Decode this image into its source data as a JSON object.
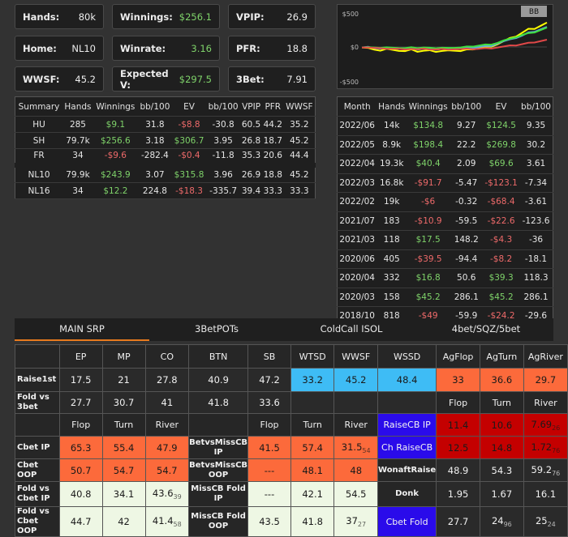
{
  "cards": [
    {
      "label": "Hands:",
      "value": "80k",
      "cls": ""
    },
    {
      "label": "Winnings:",
      "value": "$256.1",
      "cls": "green"
    },
    {
      "label": "VPIP:",
      "value": "26.9",
      "cls": ""
    },
    {
      "label": "Home:",
      "value": "NL10",
      "cls": ""
    },
    {
      "label": "Winrate:",
      "value": "3.16",
      "cls": "green"
    },
    {
      "label": "PFR:",
      "value": "18.8",
      "cls": ""
    },
    {
      "label": "WWSF:",
      "value": "45.2",
      "cls": ""
    },
    {
      "label": "Expected V:",
      "value": "$297.5",
      "cls": "green"
    },
    {
      "label": "3Bet:",
      "value": "7.91",
      "cls": ""
    }
  ],
  "summary": {
    "headers": [
      "Summary",
      "Hands",
      "Winnings",
      "bb/100",
      "EV",
      "bb/100",
      "VPIP",
      "PFR",
      "WWSF"
    ],
    "rows": [
      [
        "HU",
        "285",
        "$9.1",
        "31.8",
        "-$8.8",
        "-30.8",
        "60.5",
        "44.2",
        "35.2"
      ],
      [
        "SH",
        "79.7k",
        "$256.6",
        "3.18",
        "$306.7",
        "3.95",
        "26.8",
        "18.7",
        "45.2"
      ],
      [
        "FR",
        "34",
        "-$9.6",
        "-282.4",
        "-$0.4",
        "-11.8",
        "35.3",
        "20.6",
        "44.4"
      ],
      [
        "NL10",
        "79.9k",
        "$243.9",
        "3.07",
        "$315.8",
        "3.96",
        "26.9",
        "18.8",
        "45.2"
      ],
      [
        "NL16",
        "34",
        "$12.2",
        "224.8",
        "-$18.3",
        "-335.7",
        "39.4",
        "33.3",
        "33.3"
      ]
    ]
  },
  "chart_data": {
    "type": "line",
    "legend": "BB",
    "ytick_labels": [
      "$500",
      "$0",
      "-$500"
    ],
    "ylim": [
      -500,
      500
    ],
    "series": [
      {
        "color": "#ffff00",
        "values": [
          0,
          -10,
          -40,
          -60,
          -20,
          -40,
          -60,
          -50,
          -30,
          -70,
          -60,
          -40,
          -70,
          -60,
          -40,
          -50,
          -60,
          -40,
          -30,
          -20,
          0,
          10,
          40,
          80,
          120,
          150,
          200,
          250,
          260,
          300,
          340
        ]
      },
      {
        "color": "#5fa8e0",
        "values": [
          0,
          5,
          -20,
          -30,
          -10,
          -20,
          -30,
          -20,
          -10,
          -40,
          -30,
          -20,
          -40,
          -30,
          -20,
          -30,
          -30,
          -20,
          -10,
          0,
          10,
          20,
          50,
          80,
          100,
          130,
          160,
          200,
          220,
          250,
          280
        ]
      },
      {
        "color": "#3fe03f",
        "values": [
          0,
          0,
          -10,
          -20,
          0,
          -10,
          -20,
          -10,
          0,
          -20,
          -15,
          -5,
          -20,
          -15,
          -5,
          -10,
          -10,
          0,
          10,
          20,
          30,
          40,
          60,
          90,
          110,
          140,
          170,
          190,
          210,
          240,
          270
        ]
      },
      {
        "color": "#e04848",
        "values": [
          0,
          -5,
          -15,
          -25,
          -20,
          -25,
          -30,
          -28,
          -25,
          -35,
          -30,
          -30,
          -35,
          -32,
          -30,
          -30,
          -32,
          -30,
          -28,
          -25,
          -20,
          -15,
          -5,
          5,
          15,
          25,
          40,
          55,
          70,
          85,
          100
        ]
      }
    ]
  },
  "monthly": {
    "headers": [
      "Month",
      "Hands",
      "Winnings",
      "bb/100",
      "EV",
      "bb/100"
    ],
    "rows": [
      [
        "2022/06",
        "14k",
        "$134.8",
        "9.27",
        "$124.5",
        "9.35"
      ],
      [
        "2022/05",
        "8.9k",
        "$198.4",
        "22.2",
        "$269.8",
        "30.2"
      ],
      [
        "2022/04",
        "19.3k",
        "$40.4",
        "2.09",
        "$69.6",
        "3.61"
      ],
      [
        "2022/03",
        "16.8k",
        "-$91.7",
        "-5.47",
        "-$123.1",
        "-7.34"
      ],
      [
        "2022/02",
        "19k",
        "-$6",
        "-0.32",
        "-$68.4",
        "-3.61"
      ],
      [
        "2021/07",
        "183",
        "-$10.9",
        "-59.5",
        "-$22.6",
        "-123.6"
      ],
      [
        "2021/03",
        "118",
        "$17.5",
        "148.2",
        "-$4.3",
        "-36"
      ],
      [
        "2020/06",
        "405",
        "-$39.5",
        "-94.4",
        "-$8.2",
        "-18.1"
      ],
      [
        "2020/04",
        "332",
        "$16.8",
        "50.6",
        "$39.3",
        "118.3"
      ],
      [
        "2020/03",
        "158",
        "$45.2",
        "286.1",
        "$45.2",
        "286.1"
      ],
      [
        "2018/10",
        "818",
        "-$49",
        "-59.9",
        "-$24.2",
        "-29.6"
      ]
    ]
  },
  "tabs": [
    "MAIN SRP",
    "3BetPOTs",
    "ColdCall ISOL",
    "4bet/SQZ/5bet"
  ],
  "grid": {
    "pos_headers": [
      "EP",
      "MP",
      "CO",
      "BTN",
      "SB"
    ],
    "stat_headers": [
      "WTSD",
      "WWSF",
      "WSSD",
      "AgFlop",
      "AgTurn",
      "AgRiver"
    ],
    "raise1st": {
      "label": "Raise1st",
      "values": [
        "17.5",
        "21",
        "27.8",
        "40.9",
        "47.2"
      ],
      "wtsd": "33.2",
      "wwsf": "45.2",
      "wssd": "48.4",
      "agflop": "33",
      "agturn": "36.6",
      "agriver": "29.7"
    },
    "foldvs3bet": {
      "label": "Fold vs 3bet",
      "values": [
        "27.7",
        "30.7",
        "41",
        "41.8",
        "33.6"
      ]
    },
    "street_headers": [
      "Flop",
      "Turn",
      "River"
    ],
    "cbet_ip": {
      "label": "Cbet IP",
      "values": [
        "65.3",
        "55.4",
        "47.9"
      ],
      "mid_label": "BetvsMissCB IP",
      "mid": [
        "41.5",
        "57.4",
        "31.5"
      ],
      "mid_sub": "54",
      "right_label": "RaiseCB IP",
      "right": [
        "11.4",
        "10.6",
        "7.69"
      ],
      "right_sub": "26"
    },
    "cbet_oop": {
      "label": "Cbet OOP",
      "values": [
        "50.7",
        "54.7",
        "54.7"
      ],
      "mid_label": "BetvsMissCB OOP",
      "mid": [
        "---",
        "48.1",
        "48"
      ],
      "right_label": "Ch RaiseCB",
      "right": [
        "12.5",
        "14.8",
        "1.72"
      ],
      "right_sub": "76"
    },
    "fold_cbet_ip": {
      "label": "Fold vs Cbet IP",
      "values": [
        "40.8",
        "34.1",
        "43.6"
      ],
      "sub": "39",
      "mid_label": "MissCB Fold IP",
      "mid": [
        "---",
        "42.1",
        "54.5"
      ],
      "right_label": "Donk",
      "right": [
        "1.95",
        "1.67",
        "16.1"
      ]
    },
    "fold_cbet_oop": {
      "label": "Fold vs Cbet OOP",
      "values": [
        "44.7",
        "42",
        "41.4"
      ],
      "sub": "58",
      "mid_label": "MissCB Fold OOP",
      "mid": [
        "43.5",
        "41.8",
        "37"
      ],
      "mid_sub": "27",
      "right_label": "Cbet Fold",
      "right": [
        "27.7",
        "24",
        "25"
      ],
      "right_sub2": "96",
      "right_sub3": "24"
    },
    "wonaftraise": {
      "label": "WonaftRaise",
      "values": [
        "48.9",
        "54.3",
        "59.2"
      ],
      "sub": "76"
    }
  }
}
